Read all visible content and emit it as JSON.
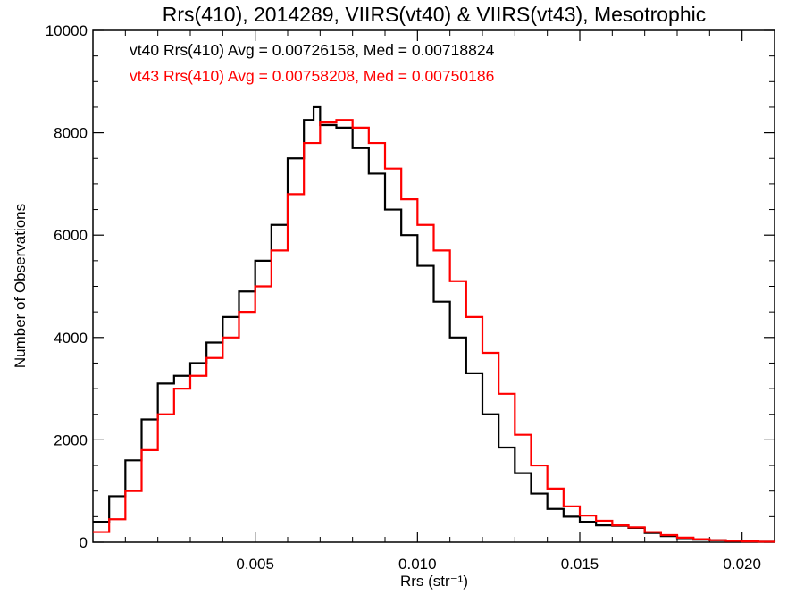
{
  "chart_data": {
    "type": "line",
    "title": "Rrs(410), 2014289, VIIRS(vt40) & VIIRS(vt43), Mesotrophic",
    "xlabel": "Rrs (str⁻¹)",
    "ylabel": "Number of Observations",
    "xlim": [
      0.0,
      0.021
    ],
    "ylim": [
      0,
      10000
    ],
    "x_ticks": [
      {
        "value": 0.005,
        "label": "0.005"
      },
      {
        "value": 0.01,
        "label": "0.010"
      },
      {
        "value": 0.015,
        "label": "0.015"
      },
      {
        "value": 0.02,
        "label": "0.020"
      }
    ],
    "y_ticks": [
      {
        "value": 0,
        "label": "0"
      },
      {
        "value": 2000,
        "label": "2000"
      },
      {
        "value": 4000,
        "label": "4000"
      },
      {
        "value": 6000,
        "label": "6000"
      },
      {
        "value": 8000,
        "label": "8000"
      },
      {
        "value": 10000,
        "label": "10000"
      }
    ],
    "grid": false,
    "legend": "top-left",
    "annotations": [
      {
        "text": "vt40 Rrs(410) Avg = 0.00726158, Med = 0.00718824",
        "color": "#000000"
      },
      {
        "text": "vt43 Rrs(410) Avg = 0.00758208, Med = 0.00750186",
        "color": "#ff0000"
      }
    ],
    "series": [
      {
        "color": "#000000",
        "x": [
          0.0,
          0.0005,
          0.001,
          0.0015,
          0.002,
          0.0025,
          0.003,
          0.0035,
          0.004,
          0.0045,
          0.005,
          0.0055,
          0.006,
          0.0065,
          0.0068,
          0.007,
          0.0075,
          0.008,
          0.0085,
          0.009,
          0.0095,
          0.01,
          0.0105,
          0.011,
          0.0115,
          0.012,
          0.0125,
          0.013,
          0.0135,
          0.014,
          0.0145,
          0.015,
          0.0155,
          0.016,
          0.0165,
          0.017,
          0.0175,
          0.018,
          0.0185,
          0.019,
          0.0195,
          0.02,
          0.0205,
          0.021
        ],
        "y": [
          400,
          900,
          1600,
          2400,
          3100,
          3250,
          3500,
          3900,
          4400,
          4900,
          5500,
          6200,
          7500,
          8250,
          8500,
          8150,
          8100,
          7700,
          7200,
          6500,
          6000,
          5400,
          4700,
          4000,
          3300,
          2500,
          1850,
          1350,
          950,
          650,
          500,
          400,
          330,
          320,
          280,
          180,
          120,
          80,
          50,
          40,
          25,
          20,
          10,
          10
        ]
      },
      {
        "color": "#ff0000",
        "x": [
          0.0,
          0.0005,
          0.001,
          0.0015,
          0.002,
          0.0025,
          0.003,
          0.0035,
          0.004,
          0.0045,
          0.005,
          0.0055,
          0.006,
          0.0065,
          0.007,
          0.0075,
          0.008,
          0.0085,
          0.009,
          0.0095,
          0.01,
          0.0105,
          0.011,
          0.0115,
          0.012,
          0.0125,
          0.013,
          0.0135,
          0.014,
          0.0145,
          0.015,
          0.0155,
          0.016,
          0.0165,
          0.017,
          0.0175,
          0.018,
          0.0185,
          0.019,
          0.0195,
          0.02,
          0.0205,
          0.021
        ],
        "y": [
          200,
          450,
          1000,
          1800,
          2500,
          3000,
          3250,
          3600,
          4000,
          4500,
          5000,
          5700,
          6800,
          7800,
          8200,
          8250,
          8100,
          7800,
          7300,
          6700,
          6200,
          5700,
          5100,
          4400,
          3700,
          2900,
          2100,
          1500,
          1050,
          700,
          520,
          420,
          330,
          290,
          200,
          140,
          90,
          60,
          40,
          25,
          15,
          10,
          5
        ]
      }
    ]
  }
}
